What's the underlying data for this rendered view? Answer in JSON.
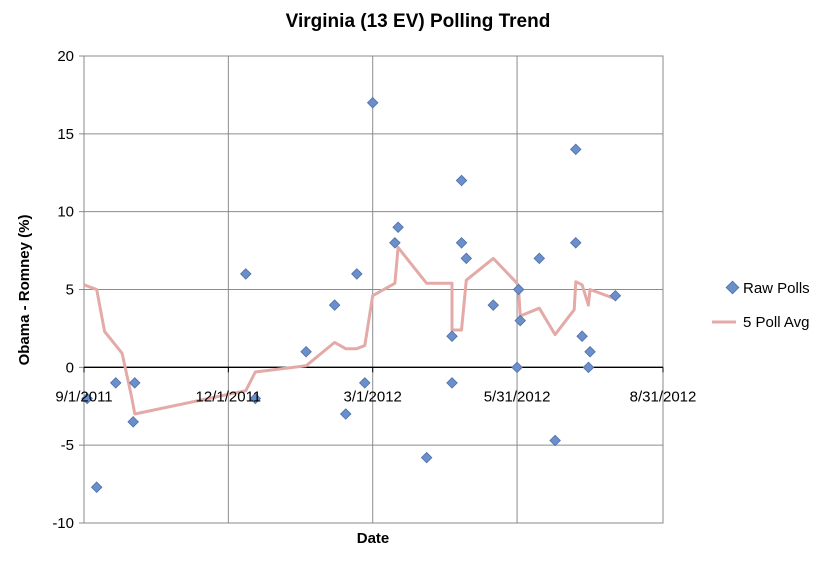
{
  "chart_data": {
    "type": "scatter",
    "title": "Virginia (13 EV) Polling Trend",
    "xlabel": "Date",
    "ylabel": "Obama - Romney (%)",
    "xlim": [
      "2011-09-01",
      "2012-08-31"
    ],
    "ylim": [
      -10,
      20
    ],
    "x_ticks": [
      "9/1/2011",
      "12/1/2011",
      "3/1/2012",
      "5/31/2012",
      "8/31/2012"
    ],
    "y_ticks": [
      -10,
      -5,
      0,
      5,
      10,
      15,
      20
    ],
    "grid": true,
    "legend_position": "right",
    "series": [
      {
        "name": "Raw Polls",
        "kind": "scatter",
        "color": "#6b8fca",
        "points": [
          {
            "x": "2011-09-03",
            "y": -2.0
          },
          {
            "x": "2011-09-09",
            "y": -7.7
          },
          {
            "x": "2011-09-21",
            "y": -1.0
          },
          {
            "x": "2011-10-02",
            "y": -3.5
          },
          {
            "x": "2011-10-03",
            "y": -1.0
          },
          {
            "x": "2011-12-12",
            "y": 6.0
          },
          {
            "x": "2011-12-18",
            "y": -2.0
          },
          {
            "x": "2012-01-19",
            "y": 1.0
          },
          {
            "x": "2012-02-06",
            "y": 4.0
          },
          {
            "x": "2012-02-13",
            "y": -3.0
          },
          {
            "x": "2012-02-20",
            "y": 6.0
          },
          {
            "x": "2012-02-25",
            "y": -1.0
          },
          {
            "x": "2012-03-01",
            "y": 17.0
          },
          {
            "x": "2012-03-15",
            "y": 8.0
          },
          {
            "x": "2012-03-17",
            "y": 9.0
          },
          {
            "x": "2012-04-04",
            "y": -5.8
          },
          {
            "x": "2012-04-20",
            "y": 2.0
          },
          {
            "x": "2012-04-20",
            "y": -1.0
          },
          {
            "x": "2012-04-26",
            "y": 12.0
          },
          {
            "x": "2012-04-26",
            "y": 8.0
          },
          {
            "x": "2012-04-29",
            "y": 7.0
          },
          {
            "x": "2012-05-16",
            "y": 4.0
          },
          {
            "x": "2012-05-31",
            "y": 0.0
          },
          {
            "x": "2012-06-01",
            "y": 5.0
          },
          {
            "x": "2012-06-02",
            "y": 3.0
          },
          {
            "x": "2012-06-14",
            "y": 7.0
          },
          {
            "x": "2012-06-24",
            "y": -4.7
          },
          {
            "x": "2012-07-07",
            "y": 14.0
          },
          {
            "x": "2012-07-07",
            "y": 8.0
          },
          {
            "x": "2012-07-11",
            "y": 2.0
          },
          {
            "x": "2012-07-15",
            "y": 0.0
          },
          {
            "x": "2012-07-16",
            "y": 1.0
          },
          {
            "x": "2012-08-01",
            "y": 4.6
          }
        ]
      },
      {
        "name": "5 Poll Avg",
        "kind": "line",
        "color": "#e3aaa8",
        "points": [
          {
            "x": "2011-09-01",
            "y": 5.3
          },
          {
            "x": "2011-09-09",
            "y": 5.0
          },
          {
            "x": "2011-09-14",
            "y": 2.3
          },
          {
            "x": "2011-09-25",
            "y": 0.9
          },
          {
            "x": "2011-10-01",
            "y": -1.9
          },
          {
            "x": "2011-10-03",
            "y": -3.0
          },
          {
            "x": "2011-12-12",
            "y": -1.5
          },
          {
            "x": "2011-12-18",
            "y": -0.3
          },
          {
            "x": "2012-01-19",
            "y": 0.1
          },
          {
            "x": "2012-02-06",
            "y": 1.6
          },
          {
            "x": "2012-02-13",
            "y": 1.2
          },
          {
            "x": "2012-02-20",
            "y": 1.2
          },
          {
            "x": "2012-02-25",
            "y": 1.4
          },
          {
            "x": "2012-03-01",
            "y": 4.6
          },
          {
            "x": "2012-03-15",
            "y": 5.4
          },
          {
            "x": "2012-03-17",
            "y": 7.7
          },
          {
            "x": "2012-04-04",
            "y": 5.4
          },
          {
            "x": "2012-04-20",
            "y": 5.4
          },
          {
            "x": "2012-04-20",
            "y": 2.4
          },
          {
            "x": "2012-04-26",
            "y": 2.4
          },
          {
            "x": "2012-04-29",
            "y": 5.6
          },
          {
            "x": "2012-05-16",
            "y": 7.0
          },
          {
            "x": "2012-05-31",
            "y": 5.4
          },
          {
            "x": "2012-06-01",
            "y": 5.0
          },
          {
            "x": "2012-06-02",
            "y": 3.3
          },
          {
            "x": "2012-06-14",
            "y": 3.8
          },
          {
            "x": "2012-06-24",
            "y": 2.1
          },
          {
            "x": "2012-07-06",
            "y": 3.7
          },
          {
            "x": "2012-07-07",
            "y": 5.5
          },
          {
            "x": "2012-07-11",
            "y": 5.3
          },
          {
            "x": "2012-07-15",
            "y": 4.0
          },
          {
            "x": "2012-07-16",
            "y": 5.0
          },
          {
            "x": "2012-08-01",
            "y": 4.4
          }
        ]
      }
    ]
  }
}
